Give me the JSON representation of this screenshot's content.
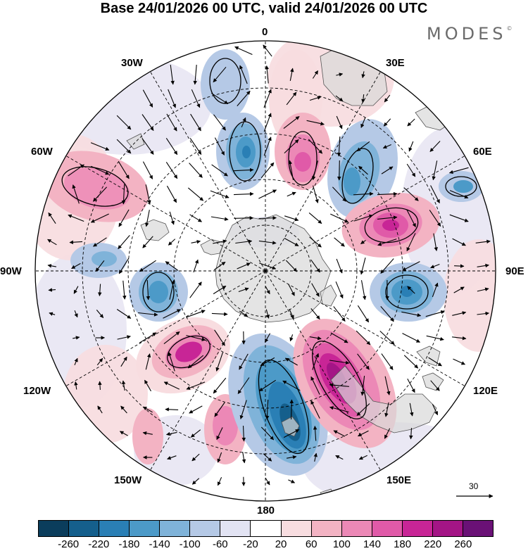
{
  "title": "Base 24/01/2026 00 UTC, valid 24/01/2026 00 UTC",
  "brand": {
    "text": "MODES",
    "mark": "©"
  },
  "meridian_labels": {
    "m0": "0",
    "m30e": "30E",
    "m60e": "60E",
    "m90e": "90E",
    "m120e": "120E",
    "m150e": "150E",
    "m180": "180",
    "m150w": "150W",
    "m120w": "120W",
    "m90w": "90W",
    "m60w": "60W",
    "m30w": "30W"
  },
  "reference_vector": {
    "value": "30",
    "icon": "arrow-right-icon"
  },
  "colorbar": {
    "colors": [
      "#0b3d5c",
      "#155f8c",
      "#2a7fb5",
      "#4c9ac8",
      "#7fb3d9",
      "#b5c9e6",
      "#e2e3f3",
      "#ffffff",
      "#f8dde0",
      "#f3b3c3",
      "#ec88b6",
      "#e05aa8",
      "#c82596",
      "#a41586",
      "#6a1176"
    ],
    "ticks": [
      "-260",
      "-220",
      "-180",
      "-140",
      "-100",
      "-60",
      "-20",
      "20",
      "60",
      "100",
      "140",
      "180",
      "220",
      "260"
    ]
  },
  "map_icons": {
    "vectors": "wind-vector-icon",
    "land": "landmass-icon"
  }
}
